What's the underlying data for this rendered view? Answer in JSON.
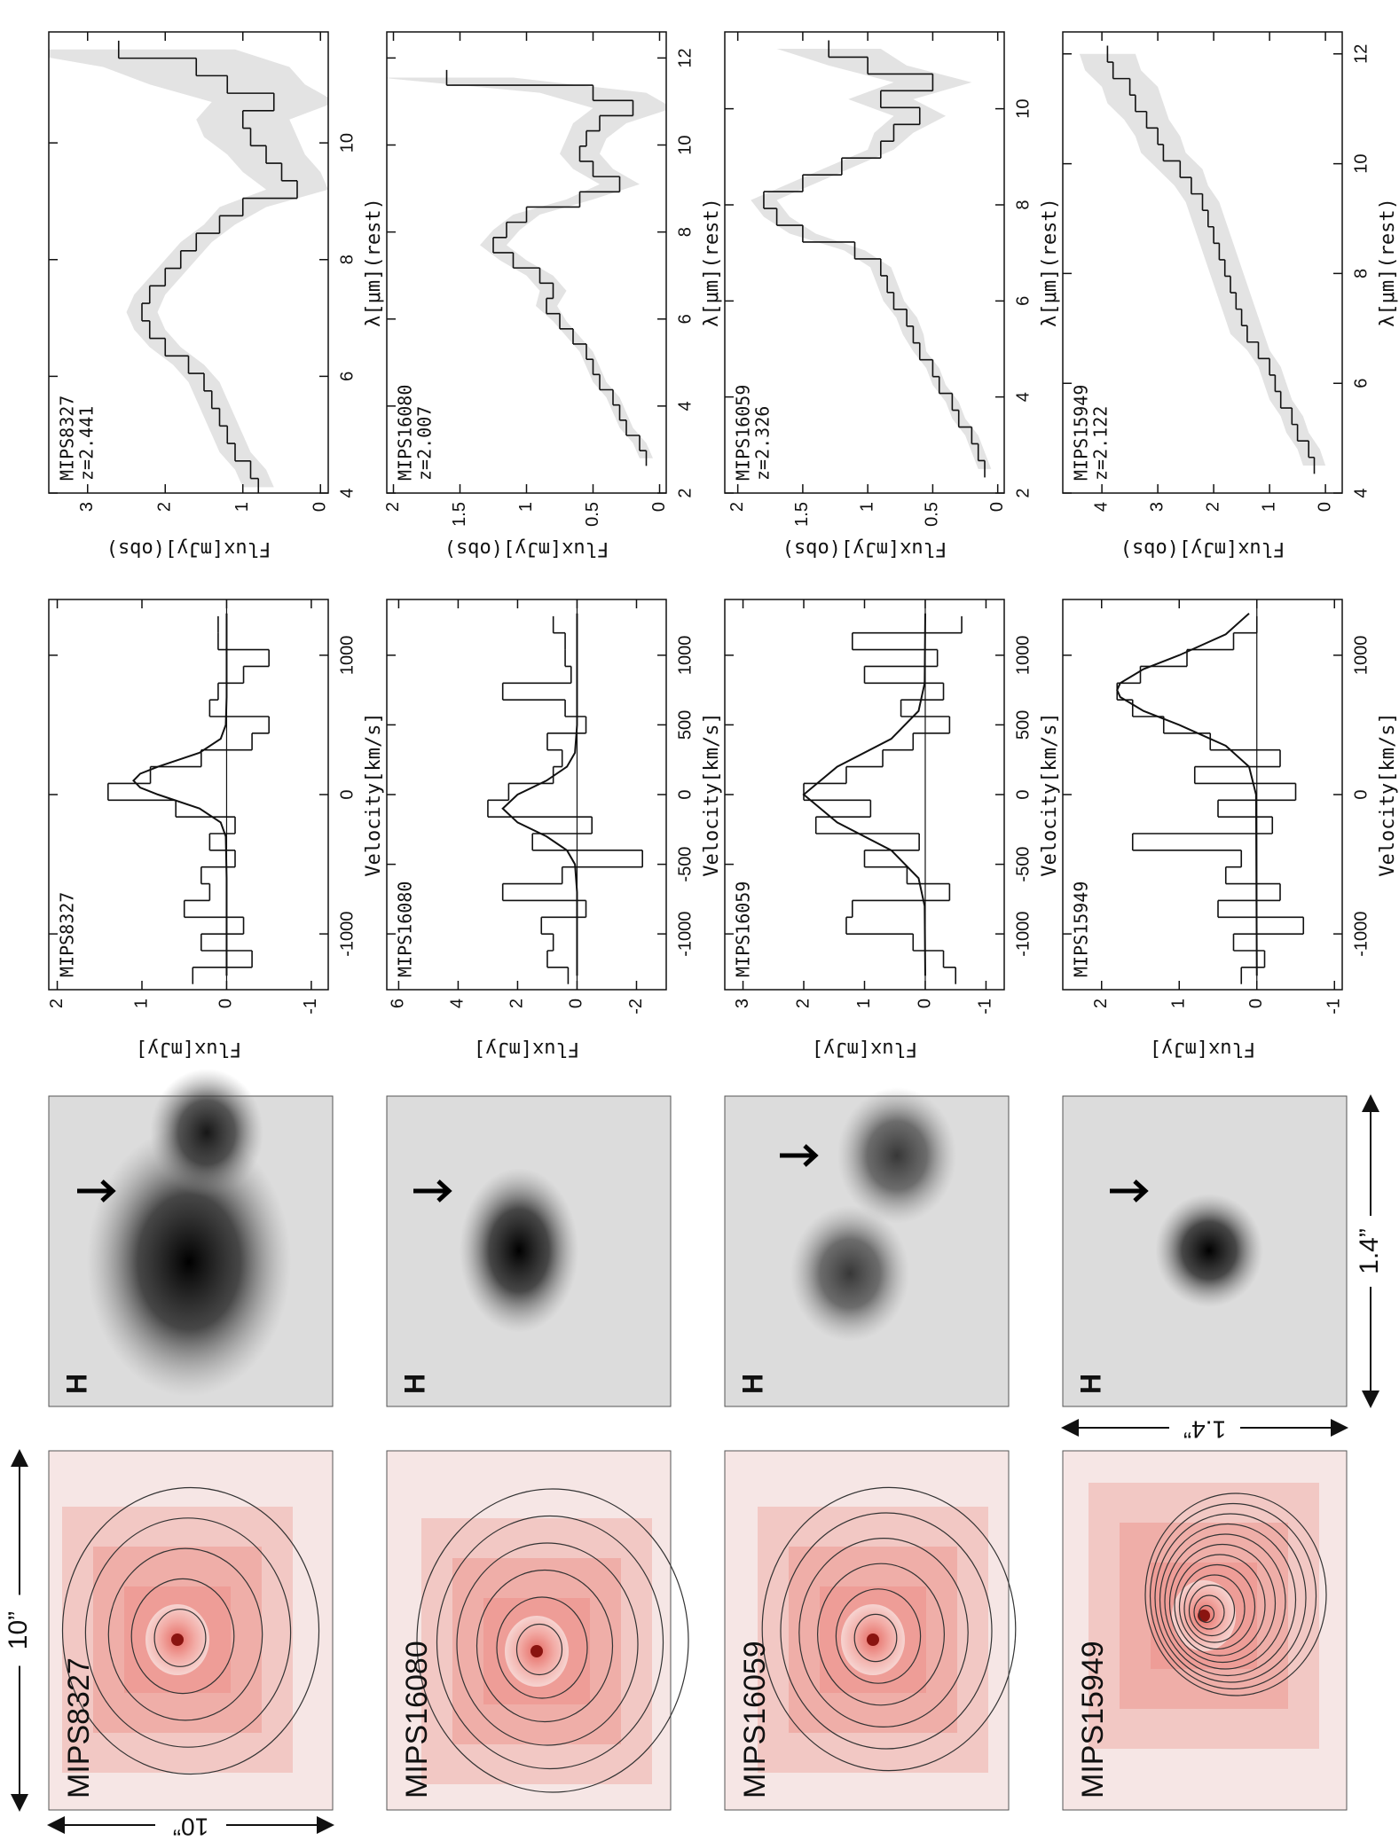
{
  "figure": {
    "cutouts": [
      {
        "label": "MIPS8327"
      },
      {
        "label": "MIPS16080"
      },
      {
        "label": "MIPS16059"
      },
      {
        "label": "MIPS15949"
      }
    ],
    "h_panels": [
      {
        "label": "H"
      },
      {
        "label": "H"
      },
      {
        "label": "H"
      },
      {
        "label": "H"
      }
    ],
    "scale_bars": [
      {
        "label": "10”"
      },
      {
        "label": "10”"
      },
      {
        "label": "1.4”"
      },
      {
        "label": "1.4”"
      }
    ]
  },
  "chart_data": [
    {
      "type": "step",
      "label": "MIPS8327",
      "xlabel": "Velocity[km/s]",
      "ylabel": "Flux[mJy]",
      "x": [
        -1300,
        -1180,
        -1060,
        -940,
        -820,
        -700,
        -580,
        -460,
        -340,
        -220,
        -100,
        20,
        140,
        260,
        380,
        500,
        620,
        740,
        860,
        980,
        1100,
        1220
      ],
      "values": [
        0.4,
        -0.3,
        0.3,
        -0.2,
        0.5,
        0.2,
        0.3,
        -0.1,
        0.2,
        -0.1,
        0.6,
        1.4,
        0.9,
        0.3,
        -0.3,
        -0.5,
        0.2,
        0.1,
        -0.2,
        -0.5,
        0.1,
        0.1
      ],
      "fit_x": [
        -1300,
        -600,
        -300,
        -200,
        -100,
        0,
        50,
        100,
        150,
        200,
        300,
        400,
        500,
        700,
        1300
      ],
      "fit_values": [
        0,
        0,
        0.01,
        0.07,
        0.32,
        0.81,
        1.02,
        1.1,
        1.02,
        0.81,
        0.32,
        0.07,
        0.01,
        0,
        0
      ],
      "hline": 0,
      "xlim": [
        -1400,
        1400
      ],
      "ylim": [
        -1.2,
        2.1
      ],
      "xticks": [
        -1000,
        0,
        1000
      ],
      "yticks": [
        -1,
        0,
        1,
        2
      ]
    },
    {
      "type": "step",
      "label": "MIPS8327",
      "sublabel": "z=2.441",
      "xlabel": "λ[μm](rest)",
      "ylabel": "Flux[mJy](obs)",
      "x": [
        4.1,
        4.4,
        4.7,
        5.0,
        5.3,
        5.6,
        5.9,
        6.2,
        6.5,
        6.8,
        7.1,
        7.4,
        7.7,
        8.0,
        8.3,
        8.6,
        8.9,
        9.2,
        9.5,
        9.8,
        10.1,
        10.4,
        10.7,
        11.0,
        11.3,
        11.6
      ],
      "values": [
        0.8,
        0.9,
        1.1,
        1.2,
        1.3,
        1.4,
        1.5,
        1.7,
        2.0,
        2.2,
        2.3,
        2.2,
        2.0,
        1.8,
        1.6,
        1.3,
        1.0,
        0.3,
        0.5,
        0.7,
        0.9,
        1.0,
        0.6,
        1.2,
        1.6,
        2.6
      ],
      "errors": [
        0.2,
        0.2,
        0.2,
        0.2,
        0.2,
        0.2,
        0.2,
        0.2,
        0.2,
        0.2,
        0.2,
        0.2,
        0.2,
        0.2,
        0.2,
        0.2,
        0.3,
        0.4,
        0.5,
        0.5,
        0.6,
        0.6,
        0.8,
        1.0,
        1.2,
        1.5
      ],
      "xlim": [
        4,
        11.9
      ],
      "ylim": [
        -0.1,
        3.5
      ],
      "xticks": [
        4,
        6,
        8,
        10
      ],
      "yticks": [
        0,
        1,
        2,
        3
      ]
    },
    {
      "type": "step",
      "label": "MIPS16080",
      "xlabel": "Velocity[km/s]",
      "ylabel": "Flux[mJy]",
      "x": [
        -1300,
        -1180,
        -1060,
        -940,
        -820,
        -700,
        -580,
        -460,
        -340,
        -220,
        -100,
        20,
        140,
        260,
        380,
        500,
        620,
        740,
        860,
        980,
        1100,
        1220
      ],
      "values": [
        0.3,
        1.0,
        0.8,
        1.2,
        -0.3,
        2.5,
        0.5,
        -2.2,
        1.5,
        -0.5,
        3.0,
        2.3,
        0.8,
        0.5,
        1.0,
        -0.3,
        0.4,
        2.5,
        0.2,
        0.4,
        0.4,
        0.8
      ],
      "fit_x": [
        -1300,
        -700,
        -500,
        -400,
        -300,
        -200,
        -100,
        0,
        100,
        200,
        300,
        500,
        1300
      ],
      "fit_values": [
        0,
        0,
        0.07,
        0.34,
        1.03,
        2.0,
        2.5,
        2.0,
        1.03,
        0.34,
        0.07,
        0,
        0
      ],
      "hline": 0,
      "xlim": [
        -1400,
        1400
      ],
      "ylim": [
        -3,
        6.4
      ],
      "xticks": [
        -1000,
        -500,
        0,
        500,
        1000
      ],
      "yticks": [
        -2,
        0,
        2,
        4,
        6
      ]
    },
    {
      "type": "step",
      "label": "MIPS16080",
      "sublabel": "z=2.007",
      "xlabel": "λ[μm](rest)",
      "ylabel": "Flux[mJy](obs)",
      "x": [
        2.8,
        3.15,
        3.5,
        3.85,
        4.2,
        4.55,
        4.9,
        5.25,
        5.6,
        5.95,
        6.3,
        6.65,
        7.0,
        7.35,
        7.7,
        8.05,
        8.4,
        8.75,
        9.1,
        9.45,
        9.8,
        10.15,
        10.5,
        10.85,
        11.2,
        11.55
      ],
      "values": [
        0.1,
        0.15,
        0.25,
        0.3,
        0.35,
        0.45,
        0.5,
        0.55,
        0.65,
        0.75,
        0.85,
        0.8,
        0.9,
        1.1,
        1.25,
        1.15,
        1.0,
        0.6,
        0.3,
        0.5,
        0.6,
        0.55,
        0.45,
        0.2,
        0.5,
        1.6
      ],
      "errors": [
        0.05,
        0.05,
        0.05,
        0.05,
        0.05,
        0.05,
        0.05,
        0.05,
        0.05,
        0.05,
        0.08,
        0.1,
        0.1,
        0.1,
        0.1,
        0.1,
        0.1,
        0.1,
        0.15,
        0.15,
        0.15,
        0.15,
        0.2,
        0.3,
        0.4,
        0.5
      ],
      "xlim": [
        2,
        12.6
      ],
      "ylim": [
        -0.05,
        2.05
      ],
      "xticks": [
        2,
        4,
        6,
        8,
        10,
        12
      ],
      "yticks": [
        0,
        0.5,
        1,
        1.5,
        2
      ]
    },
    {
      "type": "step",
      "label": "MIPS16059",
      "xlabel": "Velocity[km/s]",
      "ylabel": "Flux[mJy]",
      "x": [
        -1300,
        -1180,
        -1060,
        -940,
        -820,
        -700,
        -580,
        -460,
        -340,
        -220,
        -100,
        20,
        140,
        260,
        380,
        500,
        620,
        740,
        860,
        980,
        1100,
        1220
      ],
      "values": [
        -0.5,
        -0.3,
        0.2,
        1.3,
        1.2,
        -0.4,
        0.3,
        1.0,
        0.1,
        1.8,
        0.9,
        2.0,
        1.3,
        0.7,
        0.2,
        -0.4,
        0.4,
        -0.3,
        1.0,
        -0.2,
        1.2,
        -0.6
      ],
      "fit_x": [
        -1300,
        -800,
        -600,
        -400,
        -200,
        0,
        200,
        400,
        600,
        800,
        1300
      ],
      "fit_values": [
        0,
        0.01,
        0.11,
        0.56,
        1.45,
        2.0,
        1.45,
        0.56,
        0.11,
        0.01,
        0
      ],
      "hline": 0,
      "xlim": [
        -1400,
        1400
      ],
      "ylim": [
        -1.3,
        3.3
      ],
      "xticks": [
        -1000,
        -500,
        0,
        500,
        1000
      ],
      "yticks": [
        -1,
        0,
        1,
        2,
        3
      ]
    },
    {
      "type": "step",
      "label": "MIPS16059",
      "sublabel": "z=2.326",
      "xlabel": "λ[μm](rest)",
      "ylabel": "Flux[mJy](obs)",
      "x": [
        2.5,
        2.85,
        3.2,
        3.55,
        3.9,
        4.25,
        4.6,
        4.95,
        5.3,
        5.65,
        6.0,
        6.35,
        6.7,
        7.05,
        7.4,
        7.75,
        8.1,
        8.45,
        8.8,
        9.15,
        9.5,
        9.85,
        10.2,
        10.55,
        10.9,
        11.25
      ],
      "values": [
        0.1,
        0.15,
        0.2,
        0.3,
        0.35,
        0.45,
        0.5,
        0.6,
        0.65,
        0.7,
        0.8,
        0.85,
        0.9,
        1.1,
        1.5,
        1.7,
        1.8,
        1.5,
        1.2,
        0.9,
        0.8,
        0.6,
        0.9,
        0.5,
        1.0,
        1.3
      ],
      "errors": [
        0.05,
        0.05,
        0.05,
        0.05,
        0.05,
        0.05,
        0.05,
        0.05,
        0.08,
        0.08,
        0.08,
        0.08,
        0.08,
        0.08,
        0.1,
        0.1,
        0.1,
        0.1,
        0.1,
        0.1,
        0.15,
        0.2,
        0.25,
        0.3,
        0.3,
        0.4
      ],
      "xlim": [
        2,
        11.6
      ],
      "ylim": [
        -0.05,
        2.1
      ],
      "xticks": [
        2,
        4,
        6,
        8,
        10
      ],
      "yticks": [
        0,
        0.5,
        1,
        1.5,
        2
      ]
    },
    {
      "type": "step",
      "label": "MIPS15949",
      "xlabel": "Velocity[km/s]",
      "ylabel": "Flux[mJy]",
      "x": [
        -1300,
        -1180,
        -1060,
        -940,
        -820,
        -700,
        -580,
        -460,
        -340,
        -220,
        -100,
        20,
        140,
        260,
        380,
        500,
        620,
        740,
        860,
        980,
        1100,
        1220
      ],
      "values": [
        0.2,
        -0.1,
        0.3,
        -0.6,
        0.5,
        -0.3,
        0.4,
        0.2,
        1.6,
        -0.2,
        0.5,
        -0.5,
        0.8,
        -0.3,
        0.6,
        1.2,
        1.6,
        1.8,
        1.5,
        0.9,
        0.3,
        0.0
      ],
      "fit_x": [
        -1300,
        0,
        200,
        350,
        500,
        600,
        700,
        750,
        800,
        900,
        1000,
        1150,
        1300
      ],
      "fit_values": [
        0,
        0.01,
        0.1,
        0.4,
        1.0,
        1.46,
        1.76,
        1.8,
        1.76,
        1.46,
        1.0,
        0.4,
        0.1
      ],
      "hline": 0,
      "xlim": [
        -1400,
        1400
      ],
      "ylim": [
        -1.1,
        2.5
      ],
      "xticks": [
        -1000,
        0,
        1000
      ],
      "yticks": [
        -1,
        0,
        1,
        2
      ]
    },
    {
      "type": "step",
      "label": "MIPS15949",
      "sublabel": "z=2.122",
      "xlabel": "λ[μm](rest)",
      "ylabel": "Flux[mJy](obs)",
      "x": [
        4.5,
        4.8,
        5.1,
        5.4,
        5.7,
        6.0,
        6.3,
        6.6,
        6.9,
        7.2,
        7.5,
        7.8,
        8.1,
        8.4,
        8.7,
        9.0,
        9.3,
        9.6,
        9.9,
        10.2,
        10.5,
        10.8,
        11.1,
        11.4,
        11.7,
        12.0
      ],
      "values": [
        0.2,
        0.3,
        0.5,
        0.6,
        0.8,
        0.9,
        1.0,
        1.2,
        1.4,
        1.5,
        1.6,
        1.7,
        1.8,
        1.9,
        2.0,
        2.1,
        2.2,
        2.4,
        2.6,
        2.9,
        3.0,
        3.2,
        3.4,
        3.5,
        3.8,
        3.9
      ],
      "errors": [
        0.2,
        0.2,
        0.2,
        0.2,
        0.2,
        0.2,
        0.2,
        0.2,
        0.3,
        0.3,
        0.3,
        0.3,
        0.3,
        0.3,
        0.3,
        0.3,
        0.3,
        0.3,
        0.4,
        0.4,
        0.4,
        0.4,
        0.5,
        0.5,
        0.5,
        0.5
      ],
      "xlim": [
        4,
        12.4
      ],
      "ylim": [
        -0.3,
        4.7
      ],
      "xticks": [
        4,
        6,
        8,
        10,
        12
      ],
      "yticks": [
        0,
        1,
        2,
        3,
        4
      ]
    }
  ]
}
